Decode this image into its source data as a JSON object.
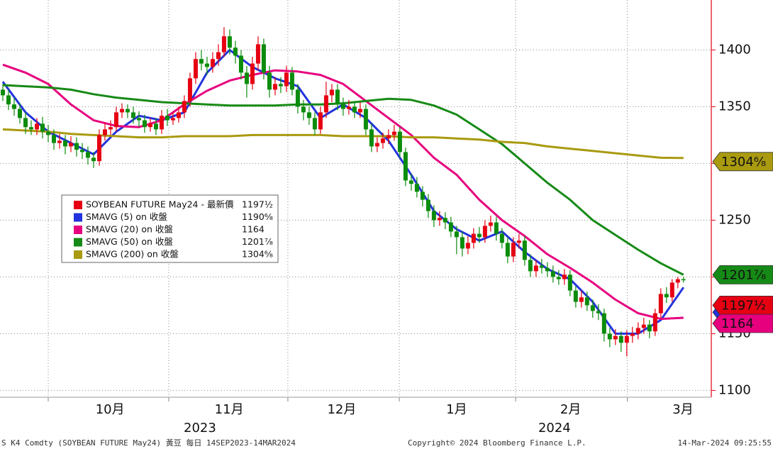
{
  "chart_data": {
    "type": "candlestick",
    "xlim": [
      -0.5,
      124.9
    ],
    "ylim": [
      1094,
      1444
    ],
    "yticks": [
      1100,
      1150,
      1200,
      1250,
      1300,
      1350,
      1400
    ],
    "xgrid": [
      8,
      29.25,
      50.25,
      69.9,
      90.4,
      110.1
    ],
    "month_labels": [
      {
        "value": 18.9,
        "label": "10月"
      },
      {
        "value": 39.9,
        "label": "11月"
      },
      {
        "value": 59.75,
        "label": "12月"
      },
      {
        "value": 80,
        "label": "1月"
      },
      {
        "value": 100.1,
        "label": "2月"
      },
      {
        "value": 119.9,
        "label": "3月"
      }
    ],
    "year_labels": [
      {
        "value": 34.75,
        "label": "2023"
      },
      {
        "value": 97.25,
        "label": "2024"
      }
    ],
    "grid": true,
    "candles": {
      "name": "SOYBEAN FUTURE May24 - 最新價",
      "up_color": "#e60012",
      "down_color": "#0b8c0b",
      "last_label": "1197½",
      "open": [
        1365,
        1360,
        1352,
        1348,
        1340,
        1332,
        1330,
        1335,
        1328,
        1325,
        1318,
        1320,
        1315,
        1318,
        1312,
        1310,
        1305,
        1302,
        1325,
        1330,
        1332,
        1345,
        1348,
        1345,
        1340,
        1338,
        1332,
        1335,
        1330,
        1342,
        1338,
        1340,
        1345,
        1355,
        1375,
        1392,
        1388,
        1385,
        1392,
        1398,
        1412,
        1402,
        1395,
        1380,
        1370,
        1388,
        1405,
        1380,
        1365,
        1370,
        1368,
        1380,
        1365,
        1350,
        1345,
        1340,
        1330,
        1345,
        1360,
        1365,
        1352,
        1348,
        1350,
        1345,
        1348,
        1330,
        1315,
        1318,
        1322,
        1325,
        1328,
        1310,
        1285,
        1282,
        1275,
        1268,
        1258,
        1250,
        1252,
        1248,
        1240,
        1235,
        1225,
        1230,
        1238,
        1235,
        1245,
        1248,
        1238,
        1230,
        1218,
        1230,
        1232,
        1215,
        1205,
        1210,
        1208,
        1205,
        1200,
        1198,
        1202,
        1188,
        1178,
        1182,
        1175,
        1170,
        1168,
        1150,
        1145,
        1148,
        1142,
        1148,
        1150,
        1155,
        1158,
        1152,
        1168,
        1185,
        1182,
        1195,
        1198
      ],
      "high": [
        1370,
        1365,
        1358,
        1353,
        1345,
        1338,
        1340,
        1341,
        1334,
        1330,
        1326,
        1325,
        1324,
        1323,
        1318,
        1315,
        1310,
        1330,
        1336,
        1338,
        1350,
        1353,
        1352,
        1350,
        1346,
        1343,
        1340,
        1340,
        1347,
        1348,
        1345,
        1350,
        1360,
        1380,
        1398,
        1400,
        1394,
        1398,
        1405,
        1420,
        1418,
        1408,
        1400,
        1386,
        1394,
        1412,
        1410,
        1386,
        1376,
        1376,
        1386,
        1385,
        1370,
        1356,
        1350,
        1345,
        1350,
        1372,
        1370,
        1370,
        1358,
        1356,
        1355,
        1354,
        1352,
        1335,
        1323,
        1327,
        1330,
        1334,
        1332,
        1314,
        1291,
        1288,
        1280,
        1273,
        1263,
        1258,
        1257,
        1253,
        1245,
        1240,
        1236,
        1243,
        1244,
        1250,
        1254,
        1253,
        1243,
        1235,
        1235,
        1238,
        1236,
        1220,
        1215,
        1216,
        1213,
        1210,
        1206,
        1207,
        1206,
        1192,
        1188,
        1187,
        1180,
        1176,
        1172,
        1155,
        1154,
        1152,
        1153,
        1156,
        1160,
        1164,
        1162,
        1172,
        1190,
        1191,
        1198,
        1200,
        1200
      ],
      "low": [
        1355,
        1347,
        1342,
        1335,
        1326,
        1325,
        1325,
        1322,
        1319,
        1312,
        1313,
        1308,
        1310,
        1306,
        1304,
        1299,
        1296,
        1298,
        1320,
        1325,
        1328,
        1340,
        1340,
        1335,
        1332,
        1327,
        1328,
        1325,
        1326,
        1333,
        1334,
        1336,
        1340,
        1350,
        1370,
        1382,
        1378,
        1380,
        1386,
        1394,
        1396,
        1388,
        1374,
        1358,
        1365,
        1382,
        1374,
        1358,
        1360,
        1362,
        1363,
        1360,
        1344,
        1338,
        1334,
        1325,
        1326,
        1340,
        1354,
        1347,
        1342,
        1343,
        1340,
        1340,
        1325,
        1310,
        1310,
        1313,
        1317,
        1320,
        1305,
        1280,
        1276,
        1270,
        1262,
        1252,
        1244,
        1245,
        1242,
        1235,
        1220,
        1218,
        1220,
        1225,
        1230,
        1230,
        1240,
        1232,
        1225,
        1212,
        1213,
        1225,
        1210,
        1200,
        1200,
        1203,
        1200,
        1195,
        1193,
        1193,
        1183,
        1173,
        1173,
        1170,
        1164,
        1162,
        1143,
        1138,
        1140,
        1134,
        1130,
        1142,
        1145,
        1150,
        1146,
        1148,
        1164,
        1177,
        1178,
        1190,
        1195
      ],
      "close": [
        1360,
        1352,
        1348,
        1340,
        1332,
        1330,
        1335,
        1328,
        1325,
        1318,
        1320,
        1315,
        1318,
        1312,
        1310,
        1305,
        1302,
        1325,
        1330,
        1332,
        1345,
        1348,
        1345,
        1340,
        1338,
        1332,
        1335,
        1330,
        1342,
        1338,
        1340,
        1345,
        1355,
        1375,
        1392,
        1388,
        1385,
        1392,
        1398,
        1412,
        1402,
        1395,
        1380,
        1370,
        1388,
        1405,
        1380,
        1365,
        1370,
        1368,
        1380,
        1365,
        1350,
        1345,
        1340,
        1330,
        1345,
        1360,
        1365,
        1352,
        1348,
        1350,
        1345,
        1348,
        1330,
        1315,
        1318,
        1322,
        1325,
        1328,
        1310,
        1285,
        1282,
        1275,
        1268,
        1258,
        1250,
        1252,
        1248,
        1240,
        1235,
        1225,
        1230,
        1238,
        1235,
        1245,
        1248,
        1238,
        1230,
        1218,
        1230,
        1232,
        1215,
        1205,
        1210,
        1208,
        1205,
        1200,
        1198,
        1202,
        1188,
        1178,
        1182,
        1175,
        1170,
        1168,
        1150,
        1145,
        1148,
        1142,
        1148,
        1150,
        1155,
        1158,
        1152,
        1168,
        1185,
        1182,
        1195,
        1198,
        1197.5
      ]
    },
    "series": [
      {
        "name": "SMAVG (5)  on 收盤",
        "color": "#2233dd",
        "last_label": "1190⁶⁄₈",
        "x": [
          0,
          4,
          8,
          12,
          16,
          20,
          24,
          28,
          32,
          36,
          40,
          44,
          48,
          52,
          56,
          60,
          64,
          68,
          72,
          76,
          80,
          84,
          88,
          92,
          96,
          100,
          104,
          108,
          112,
          116,
          120
        ],
        "values": [
          1372,
          1345,
          1328,
          1318,
          1308,
          1328,
          1342,
          1338,
          1345,
          1380,
          1400,
          1385,
          1375,
          1368,
          1340,
          1352,
          1340,
          1320,
          1290,
          1258,
          1242,
          1232,
          1240,
          1222,
          1207,
          1198,
          1178,
          1150,
          1150,
          1162,
          1190.75
        ]
      },
      {
        "name": "SMAVG (20)  on 收盤",
        "color": "#e6007e",
        "last_label": "1164",
        "x": [
          0,
          4,
          8,
          12,
          16,
          20,
          24,
          28,
          32,
          36,
          40,
          44,
          48,
          52,
          56,
          60,
          64,
          68,
          72,
          76,
          80,
          84,
          88,
          92,
          96,
          100,
          104,
          108,
          112,
          116,
          120
        ],
        "values": [
          1387,
          1380,
          1370,
          1352,
          1338,
          1333,
          1332,
          1338,
          1352,
          1364,
          1373,
          1378,
          1382,
          1381,
          1378,
          1370,
          1355,
          1340,
          1325,
          1305,
          1290,
          1268,
          1250,
          1236,
          1220,
          1208,
          1195,
          1180,
          1168,
          1163,
          1164
        ]
      },
      {
        "name": "SMAVG (50)  on 收盤",
        "color": "#168a16",
        "last_label": "1201⁷⁄₈",
        "x": [
          0,
          4,
          8,
          12,
          16,
          20,
          24,
          28,
          32,
          36,
          40,
          44,
          48,
          52,
          56,
          60,
          64,
          68,
          72,
          76,
          80,
          84,
          88,
          92,
          96,
          100,
          104,
          108,
          112,
          116,
          120
        ],
        "values": [
          1369,
          1368,
          1367,
          1365,
          1361,
          1358,
          1356,
          1354,
          1353,
          1352,
          1351,
          1351,
          1351,
          1352,
          1352,
          1353,
          1355,
          1357,
          1356,
          1351,
          1343,
          1330,
          1317,
          1300,
          1283,
          1268,
          1250,
          1237,
          1224,
          1212,
          1201.875
        ]
      },
      {
        "name": "SMAVG (200)  on 收盤",
        "color": "#a99a10",
        "last_label": "1304⁶⁄₈",
        "x": [
          0,
          4,
          8,
          12,
          16,
          20,
          24,
          28,
          32,
          36,
          40,
          44,
          48,
          52,
          56,
          60,
          64,
          68,
          72,
          76,
          80,
          84,
          88,
          92,
          96,
          100,
          104,
          108,
          112,
          116,
          120
        ],
        "values": [
          1330,
          1329,
          1328,
          1326,
          1325,
          1324,
          1323,
          1323,
          1324,
          1324,
          1324,
          1325,
          1325,
          1325,
          1325,
          1324,
          1324,
          1324,
          1323,
          1323,
          1322,
          1321,
          1319,
          1318,
          1315,
          1313,
          1311,
          1309,
          1307,
          1305,
          1304.75
        ]
      }
    ],
    "footer": {
      "source": "S K4 Comdty (SOYBEAN FUTURE    May24) 黃豆  每日 14SEP2023-14MAR2024",
      "copyright": "Copyright© 2024 Bloomberg Finance L.P.",
      "timestamp": "14-Mar-2024 09:25:55"
    }
  }
}
